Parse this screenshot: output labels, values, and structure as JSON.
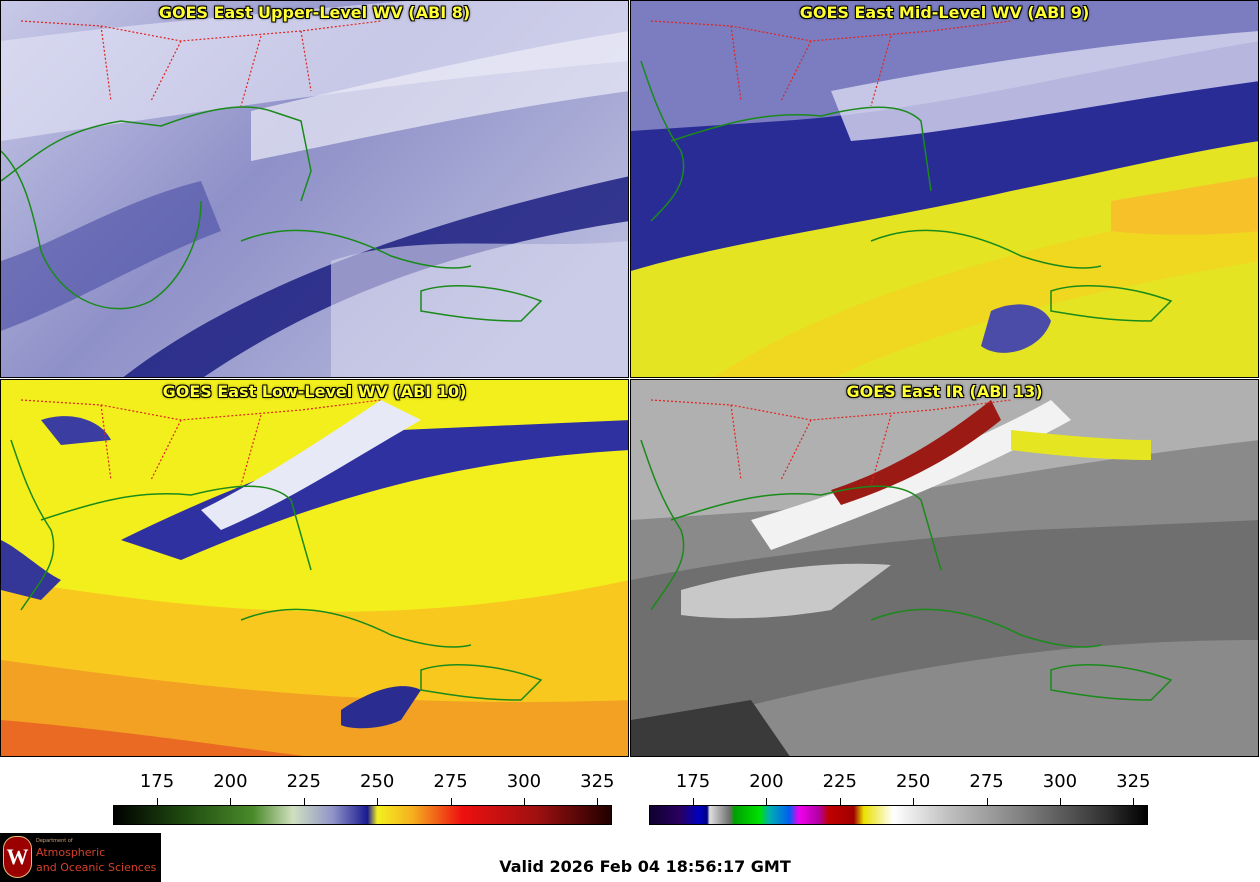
{
  "panels": [
    {
      "id": "p1",
      "title": "GOES East Upper-Level WV (ABI 8)",
      "palette": "wv-upper"
    },
    {
      "id": "p2",
      "title": "GOES East Mid-Level WV (ABI 9)",
      "palette": "wv-mid"
    },
    {
      "id": "p3",
      "title": "GOES East Low-Level WV (ABI 10)",
      "palette": "wv-low"
    },
    {
      "id": "p4",
      "title": "GOES East IR (ABI 13)",
      "palette": "ir"
    }
  ],
  "colorbars": {
    "wv": {
      "ticks": [
        "175",
        "200",
        "225",
        "250",
        "275",
        "300",
        "325"
      ],
      "range": [
        160,
        330
      ]
    },
    "ir": {
      "ticks": [
        "175",
        "200",
        "225",
        "250",
        "275",
        "300",
        "325"
      ],
      "range": [
        160,
        330
      ]
    }
  },
  "footer": {
    "valid_text": "Valid 2026 Feb 04 18:56:17 GMT"
  },
  "logo": {
    "dept": "Department of",
    "line1": "Atmospheric",
    "line2": "and Oceanic Sciences",
    "letter": "W"
  },
  "colors": {
    "state_borders": "#e0241f",
    "coastline": "#1a8a1a",
    "title": "#ffff33"
  }
}
